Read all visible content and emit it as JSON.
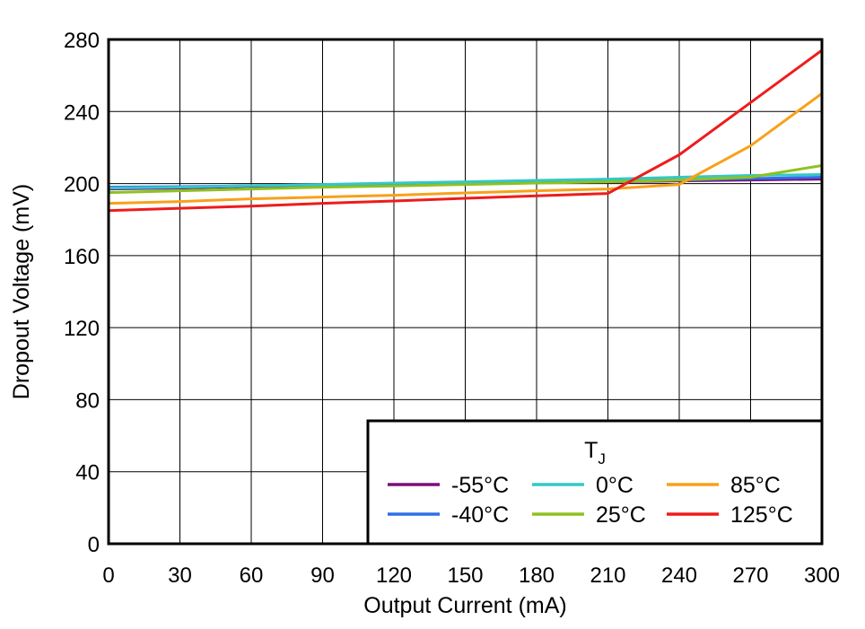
{
  "chart_data": {
    "type": "line",
    "xlabel": "Output Current (mA)",
    "ylabel": "Dropout Voltage (mV)",
    "xlim": [
      0,
      300
    ],
    "ylim": [
      0,
      280
    ],
    "xticks": [
      0,
      30,
      60,
      90,
      120,
      150,
      180,
      210,
      240,
      270,
      300
    ],
    "yticks": [
      0,
      40,
      80,
      120,
      160,
      200,
      240,
      280
    ],
    "grid": true,
    "legend": {
      "title": "T",
      "title_sub": "J",
      "placement": "bottom-right"
    },
    "series": [
      {
        "name": "-55°C",
        "color": "#7b0f7b",
        "points": [
          [
            0,
            197
          ],
          [
            30,
            197.5
          ],
          [
            60,
            198.5
          ],
          [
            90,
            199
          ],
          [
            120,
            199.5
          ],
          [
            150,
            200
          ],
          [
            180,
            200.5
          ],
          [
            210,
            201
          ],
          [
            240,
            201.5
          ],
          [
            270,
            202
          ],
          [
            300,
            202.5
          ]
        ]
      },
      {
        "name": "-40°C",
        "color": "#2f6fe8",
        "points": [
          [
            0,
            198
          ],
          [
            30,
            198.3
          ],
          [
            60,
            198.8
          ],
          [
            90,
            199.3
          ],
          [
            120,
            199.8
          ],
          [
            150,
            200.5
          ],
          [
            180,
            201
          ],
          [
            210,
            201.5
          ],
          [
            240,
            202
          ],
          [
            270,
            202.8
          ],
          [
            300,
            203.5
          ]
        ]
      },
      {
        "name": "0°C",
        "color": "#35c7c9",
        "points": [
          [
            0,
            197.5
          ],
          [
            30,
            198
          ],
          [
            60,
            198.8
          ],
          [
            90,
            199.5
          ],
          [
            120,
            200.3
          ],
          [
            150,
            201
          ],
          [
            180,
            201.8
          ],
          [
            210,
            202.5
          ],
          [
            240,
            203.5
          ],
          [
            270,
            204.5
          ],
          [
            300,
            205
          ]
        ]
      },
      {
        "name": "25°C",
        "color": "#8dc21f",
        "points": [
          [
            0,
            195
          ],
          [
            30,
            196
          ],
          [
            60,
            197
          ],
          [
            90,
            198
          ],
          [
            120,
            198.7
          ],
          [
            150,
            199.5
          ],
          [
            180,
            200.3
          ],
          [
            210,
            201
          ],
          [
            240,
            202
          ],
          [
            270,
            203.5
          ],
          [
            300,
            210
          ]
        ]
      },
      {
        "name": "85°C",
        "color": "#f7a11a",
        "points": [
          [
            0,
            189
          ],
          [
            30,
            190
          ],
          [
            60,
            191.5
          ],
          [
            90,
            192.5
          ],
          [
            120,
            193.5
          ],
          [
            150,
            194.8
          ],
          [
            180,
            196
          ],
          [
            210,
            197
          ],
          [
            240,
            199.5
          ],
          [
            270,
            221
          ],
          [
            300,
            250
          ]
        ]
      },
      {
        "name": "125°C",
        "color": "#ee1c1c",
        "points": [
          [
            0,
            185
          ],
          [
            30,
            186.3
          ],
          [
            60,
            187.5
          ],
          [
            90,
            189
          ],
          [
            120,
            190.3
          ],
          [
            150,
            191.8
          ],
          [
            180,
            193.2
          ],
          [
            210,
            194.5
          ],
          [
            240,
            216
          ],
          [
            270,
            245
          ],
          [
            300,
            274
          ]
        ]
      }
    ]
  }
}
